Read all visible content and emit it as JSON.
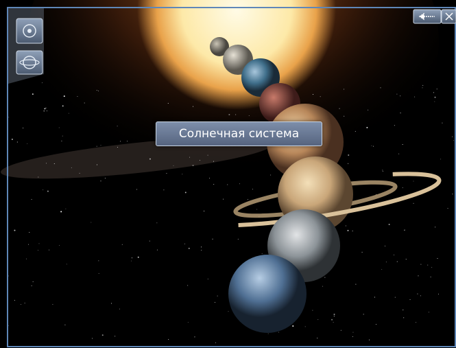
{
  "title_label": "Солнечная система"
}
